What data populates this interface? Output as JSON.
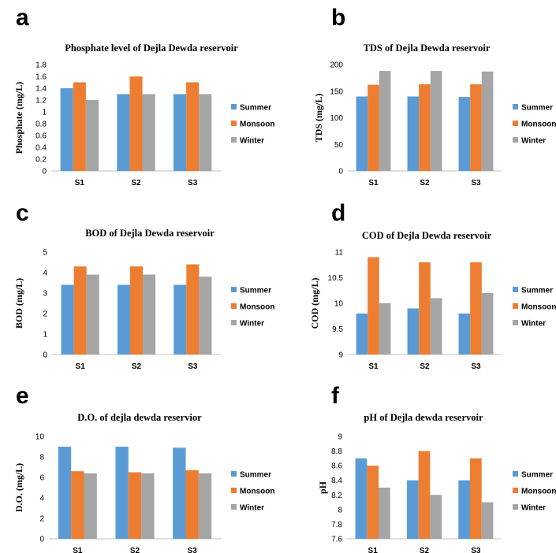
{
  "colors": {
    "summer": "#5B9BD5",
    "monsoon": "#ED7D31",
    "winter": "#A5A5A5"
  },
  "chart_data": [
    {
      "panel": "a",
      "type": "bar",
      "title": "Phosphate level of Dejla Dewda reservoir",
      "ylabel": "Phosphate (mg/L)",
      "categories": [
        "S1",
        "S2",
        "S3"
      ],
      "ylim": [
        0,
        1.8
      ],
      "yticks": [
        "0",
        "0.2",
        "0.4",
        "0.6",
        "0.8",
        "1",
        "1.2",
        "1.4",
        "1.6",
        "1.8"
      ],
      "series": [
        {
          "name": "Summer",
          "values": [
            1.4,
            1.3,
            1.3
          ]
        },
        {
          "name": "Monsoon",
          "values": [
            1.5,
            1.6,
            1.5
          ]
        },
        {
          "name": "Winter",
          "values": [
            1.2,
            1.3,
            1.3
          ]
        }
      ],
      "legend": "right"
    },
    {
      "panel": "b",
      "type": "bar",
      "title": "TDS of  Dejla Dewda reservoir",
      "ylabel": "TDS (mg/L)",
      "categories": [
        "S1",
        "S2",
        "S3"
      ],
      "ylim": [
        0,
        200
      ],
      "yticks": [
        "0",
        "50",
        "100",
        "150",
        "200"
      ],
      "series": [
        {
          "name": "Summer",
          "values": [
            140,
            140,
            139
          ]
        },
        {
          "name": "Monsoon",
          "values": [
            162,
            163,
            163
          ]
        },
        {
          "name": "Winter",
          "values": [
            188,
            188,
            187
          ]
        }
      ],
      "legend": "right"
    },
    {
      "panel": "c",
      "type": "bar",
      "title": "BOD of Dejla Dewda reservoir",
      "ylabel": "BOD (mg/L)",
      "categories": [
        "S1",
        "S2",
        "S3"
      ],
      "ylim": [
        0,
        5
      ],
      "yticks": [
        "0",
        "1",
        "2",
        "3",
        "4",
        "5"
      ],
      "series": [
        {
          "name": "Summer",
          "values": [
            3.4,
            3.4,
            3.4
          ]
        },
        {
          "name": "Monsoon",
          "values": [
            4.3,
            4.3,
            4.4
          ]
        },
        {
          "name": "Winter",
          "values": [
            3.9,
            3.9,
            3.8
          ]
        }
      ],
      "legend": "right"
    },
    {
      "panel": "d",
      "type": "bar",
      "title": "COD of Dejla Dewda reservoir",
      "ylabel": "COD  (mg/L)",
      "categories": [
        "S1",
        "S2",
        "S3"
      ],
      "ylim": [
        9,
        11
      ],
      "yticks": [
        "9",
        "9.5",
        "10",
        "10.5",
        "11"
      ],
      "series": [
        {
          "name": "Summer",
          "values": [
            9.8,
            9.9,
            9.8
          ]
        },
        {
          "name": "Monsoon",
          "values": [
            10.9,
            10.8,
            10.8
          ]
        },
        {
          "name": "Winter",
          "values": [
            10.0,
            10.1,
            10.2
          ]
        }
      ],
      "legend": "right"
    },
    {
      "panel": "e",
      "type": "bar",
      "title": "D.O.  of dejla dewda reservior",
      "ylabel": "D.O. (mg/L)",
      "categories": [
        "S1",
        "S2",
        "S3"
      ],
      "ylim": [
        0,
        10
      ],
      "yticks": [
        "0",
        "2",
        "4",
        "6",
        "8",
        "10"
      ],
      "series": [
        {
          "name": "Summer",
          "values": [
            9.0,
            9.0,
            8.9
          ]
        },
        {
          "name": "Monsoon",
          "values": [
            6.6,
            6.5,
            6.7
          ]
        },
        {
          "name": "Winter",
          "values": [
            6.4,
            6.4,
            6.4
          ]
        }
      ],
      "legend": "right"
    },
    {
      "panel": "f",
      "type": "bar",
      "title": "pH of Dejla dewda reservoir",
      "ylabel": "pH",
      "categories": [
        "S1",
        "S2",
        "S3"
      ],
      "ylim": [
        7.6,
        9
      ],
      "yticks": [
        "7.6",
        "7.8",
        "8",
        "8.2",
        "8.4",
        "8.6",
        "8.8",
        "9"
      ],
      "series": [
        {
          "name": "Summer",
          "values": [
            8.7,
            8.4,
            8.4
          ]
        },
        {
          "name": "Monsoon",
          "values": [
            8.6,
            8.8,
            8.7
          ]
        },
        {
          "name": "Winter",
          "values": [
            8.3,
            8.2,
            8.1
          ]
        }
      ],
      "legend": "right"
    }
  ]
}
